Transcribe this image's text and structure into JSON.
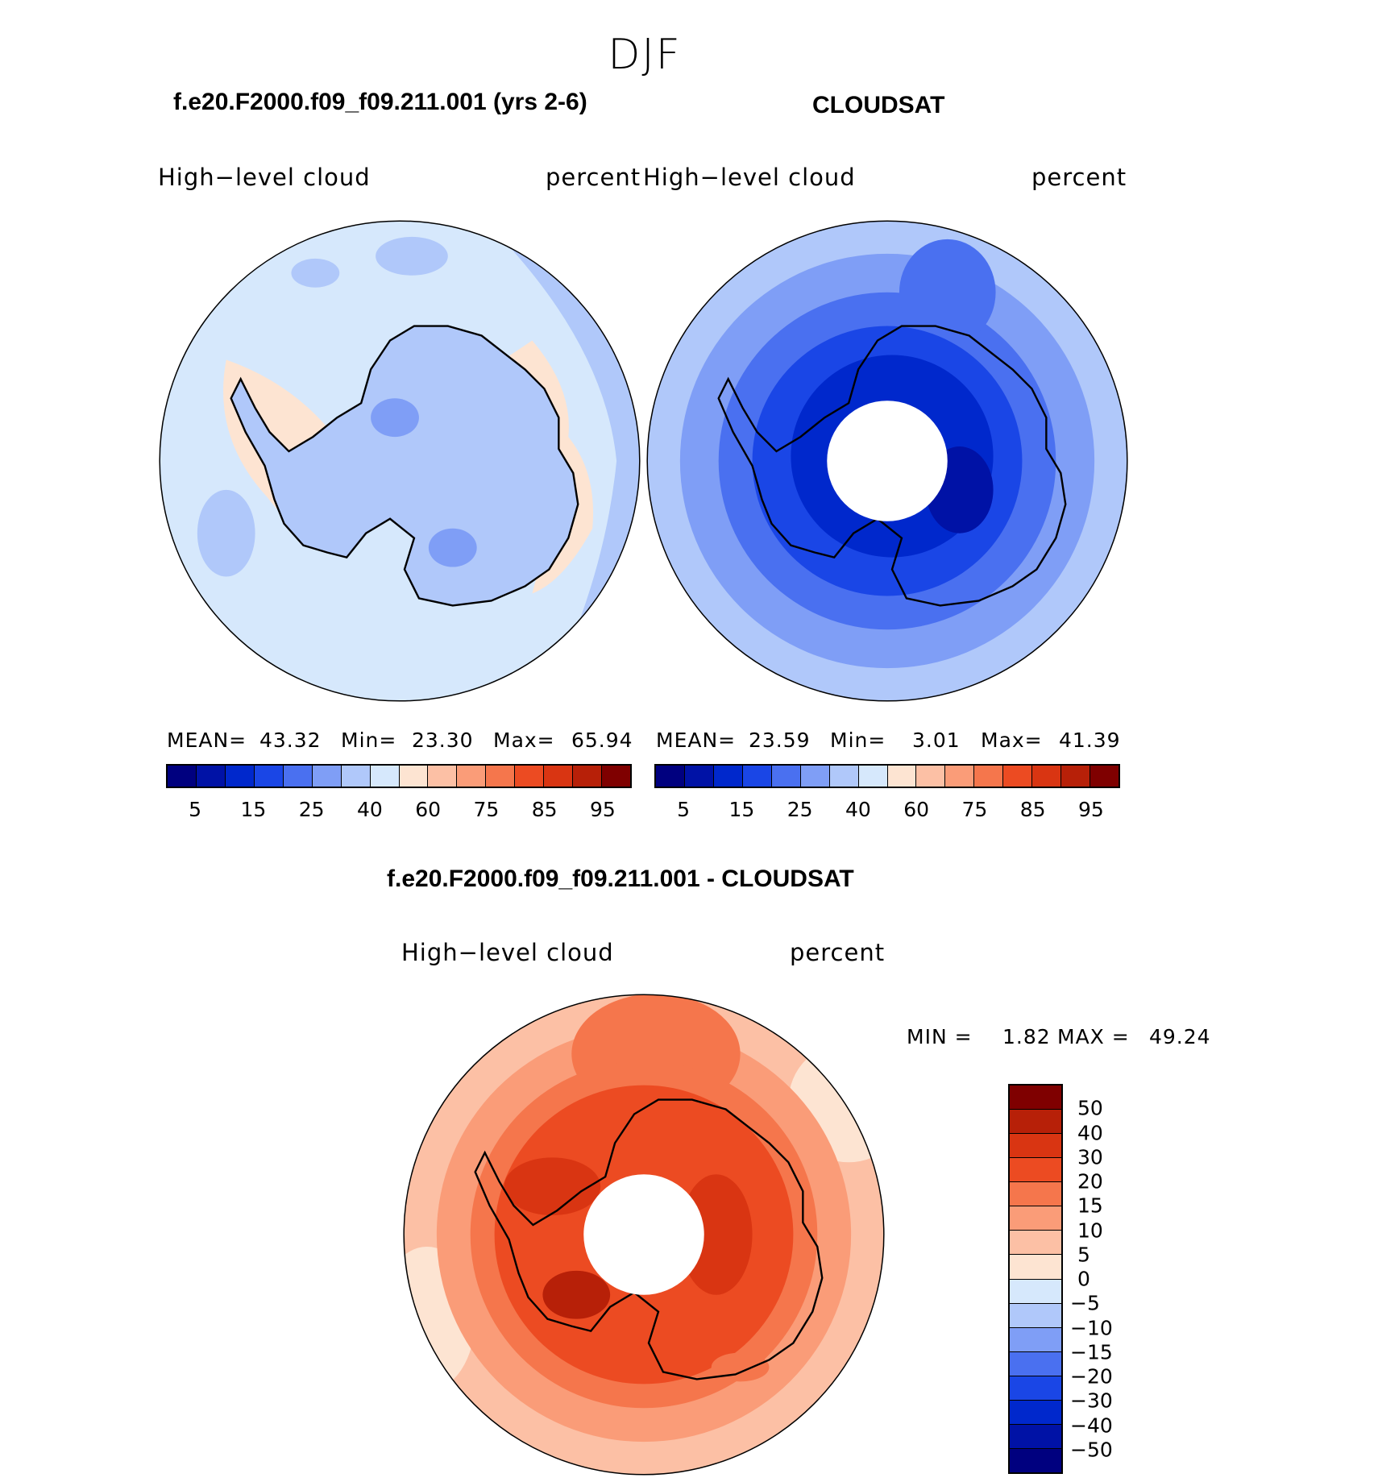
{
  "season": "DJF",
  "panels": [
    {
      "title": "f.e20.F2000.f09_f09.211.001 (yrs 2-6)",
      "left_label": "High−level  cloud",
      "right_label": "percent",
      "stats": {
        "mean_label": "MEAN=",
        "mean": "43.32",
        "min_label": "Min=",
        "min": "23.30",
        "max_label": "Max=",
        "max": "65.94"
      },
      "colorbar_ticks": [
        "5",
        "15",
        "25",
        "40",
        "60",
        "75",
        "85",
        "95"
      ]
    },
    {
      "title": "CLOUDSAT",
      "left_label": "High−level  cloud",
      "right_label": "percent",
      "stats": {
        "mean_label": "MEAN=",
        "mean": "23.59",
        "min_label": "Min=",
        "min": "3.01",
        "max_label": "Max=",
        "max": "41.39"
      },
      "colorbar_ticks": [
        "5",
        "15",
        "25",
        "40",
        "60",
        "75",
        "85",
        "95"
      ]
    }
  ],
  "diff": {
    "title": "f.e20.F2000.f09_f09.211.001 - CLOUDSAT",
    "left_label": "High−level  cloud",
    "right_label": "percent",
    "minmax": {
      "min_label": "MIN =",
      "min": "1.82",
      "max_label": "MAX =",
      "max": "49.24"
    },
    "colorbar_ticks": [
      "50",
      "40",
      "30",
      "20",
      "15",
      "10",
      "5",
      "0",
      "−5",
      "−10",
      "−15",
      "−20",
      "−30",
      "−40",
      "−50"
    ]
  },
  "palette": [
    "#00007f",
    "#0012a6",
    "#0028cc",
    "#1a46e6",
    "#4a70f0",
    "#7f9ef6",
    "#b0c8fa",
    "#d6e8fc",
    "#fde4d2",
    "#fcc0a5",
    "#fa9c78",
    "#f5764c",
    "#ec4b22",
    "#d93512",
    "#b72008",
    "#7f0000"
  ],
  "colors": {
    "ocean_left": "#d6e8fc",
    "land_line": "#000000"
  }
}
